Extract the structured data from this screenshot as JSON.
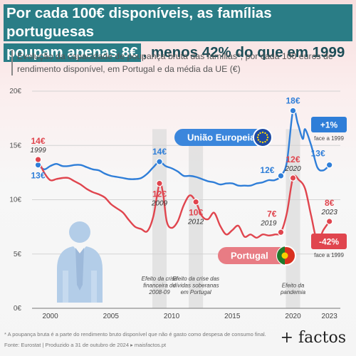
{
  "title": {
    "line1": "Por cada 100€ disponíveis, as famílias portuguesas",
    "line2_highlight": "poupam apenas 8€",
    "line2_rest": ", menos 42% do que em 1999"
  },
  "subtitle": "Evolução da capacidade de poupança bruta das famílias*, por cada 100 euros de rendimento disponível, em Portugal e da média da UE (€)",
  "chart_data": {
    "type": "line",
    "x_range": [
      1998.5,
      2023.9
    ],
    "ylim": [
      0,
      20
    ],
    "y_ticks": [
      0,
      5,
      10,
      15,
      20
    ],
    "y_tick_labels": [
      "0€",
      "5€",
      "10€",
      "15€",
      "20€"
    ],
    "x_ticks": [
      2000,
      2005,
      2010,
      2015,
      2020,
      2023
    ],
    "grid": true,
    "series": [
      {
        "name": "União Europeia",
        "color": "#2f7ed8",
        "points": [
          [
            1999,
            13.2
          ],
          [
            1999.5,
            12.8
          ],
          [
            2000,
            13.1
          ],
          [
            2000.5,
            13.3
          ],
          [
            2001,
            13.1
          ],
          [
            2001.5,
            13.1
          ],
          [
            2002,
            13.2
          ],
          [
            2002.5,
            13.2
          ],
          [
            2003,
            13.0
          ],
          [
            2003.5,
            12.8
          ],
          [
            2004,
            12.7
          ],
          [
            2004.5,
            12.4
          ],
          [
            2005,
            12.2
          ],
          [
            2005.5,
            12.1
          ],
          [
            2006,
            12.0
          ],
          [
            2006.5,
            11.9
          ],
          [
            2007,
            11.9
          ],
          [
            2007.5,
            12.0
          ],
          [
            2008,
            12.4
          ],
          [
            2008.5,
            13.0
          ],
          [
            2009,
            13.5
          ],
          [
            2009.5,
            13.1
          ],
          [
            2010,
            12.9
          ],
          [
            2010.5,
            12.6
          ],
          [
            2011,
            12.2
          ],
          [
            2011.5,
            12.2
          ],
          [
            2012,
            12.1
          ],
          [
            2012.5,
            11.9
          ],
          [
            2013,
            11.7
          ],
          [
            2013.5,
            11.6
          ],
          [
            2014,
            11.4
          ],
          [
            2014.5,
            11.5
          ],
          [
            2015,
            11.5
          ],
          [
            2015.5,
            11.3
          ],
          [
            2016,
            11.3
          ],
          [
            2016.5,
            11.3
          ],
          [
            2017,
            11.5
          ],
          [
            2017.5,
            11.6
          ],
          [
            2018,
            11.8
          ],
          [
            2018.5,
            11.8
          ],
          [
            2019,
            12.2
          ],
          [
            2019.5,
            13.5
          ],
          [
            2020,
            18.2
          ],
          [
            2020.4,
            17.0
          ],
          [
            2020.8,
            15.6
          ],
          [
            2021,
            16.5
          ],
          [
            2021.5,
            15.0
          ],
          [
            2022,
            13.0
          ],
          [
            2022.5,
            12.7
          ],
          [
            2023,
            13.2
          ]
        ]
      },
      {
        "name": "Portugal",
        "color": "#e0454e",
        "points": [
          [
            1999,
            13.7
          ],
          [
            1999.5,
            12.5
          ],
          [
            2000,
            11.8
          ],
          [
            2000.5,
            11.9
          ],
          [
            2001,
            12.0
          ],
          [
            2001.5,
            12.0
          ],
          [
            2002,
            11.7
          ],
          [
            2002.5,
            11.4
          ],
          [
            2003,
            11.0
          ],
          [
            2003.5,
            10.7
          ],
          [
            2004,
            10.5
          ],
          [
            2004.5,
            10.2
          ],
          [
            2005,
            9.6
          ],
          [
            2005.5,
            9.2
          ],
          [
            2006,
            8.8
          ],
          [
            2006.5,
            8.1
          ],
          [
            2007,
            7.5
          ],
          [
            2007.5,
            7.3
          ],
          [
            2008,
            7.1
          ],
          [
            2008.5,
            8.5
          ],
          [
            2009,
            11.5
          ],
          [
            2009.3,
            10.5
          ],
          [
            2009.6,
            8.0
          ],
          [
            2010,
            7.4
          ],
          [
            2010.5,
            8.0
          ],
          [
            2011,
            9.5
          ],
          [
            2011.5,
            10.4
          ],
          [
            2012,
            9.8
          ],
          [
            2012.5,
            8.5
          ],
          [
            2013,
            8.2
          ],
          [
            2013.5,
            8.8
          ],
          [
            2014,
            7.6
          ],
          [
            2014.5,
            6.8
          ],
          [
            2015,
            7.2
          ],
          [
            2015.5,
            7.6
          ],
          [
            2016,
            6.6
          ],
          [
            2016.5,
            6.8
          ],
          [
            2017,
            6.5
          ],
          [
            2017.5,
            6.8
          ],
          [
            2018,
            6.7
          ],
          [
            2018.5,
            6.8
          ],
          [
            2019,
            7.0
          ],
          [
            2019.5,
            8.8
          ],
          [
            2020,
            12.0
          ],
          [
            2020.5,
            11.8
          ],
          [
            2021,
            11.0
          ],
          [
            2021.5,
            8.5
          ],
          [
            2022,
            6.2
          ],
          [
            2022.5,
            7.2
          ],
          [
            2023,
            8.0
          ]
        ]
      }
    ],
    "bands": [
      {
        "x": 2009,
        "label": [
          "Efeito da crise",
          "financeira de",
          "2008-09"
        ]
      },
      {
        "x": 2012,
        "label": [
          "Efeito da crise das",
          "dívidas soberanas",
          "em Portugal"
        ]
      },
      {
        "x": 2020,
        "label": [
          "Efeito da",
          "pandemia"
        ]
      }
    ],
    "annotations": [
      {
        "series": 0,
        "x": 1999,
        "y": 13.2,
        "value": "13€",
        "year": "",
        "pos": "below"
      },
      {
        "series": 0,
        "x": 2009,
        "y": 13.5,
        "value": "14€",
        "year": "",
        "pos": "above"
      },
      {
        "series": 0,
        "x": 2019,
        "y": 12.2,
        "value": "12€",
        "year": "",
        "pos": "left"
      },
      {
        "series": 0,
        "x": 2020,
        "y": 18.2,
        "value": "18€",
        "year": "",
        "pos": "above"
      },
      {
        "series": 0,
        "x": 2023,
        "y": 13.2,
        "value": "13€",
        "year": "",
        "pos": "above-left"
      },
      {
        "series": 1,
        "x": 1999,
        "y": 13.7,
        "value": "14€",
        "year": "1999",
        "pos": "above"
      },
      {
        "series": 1,
        "x": 2009,
        "y": 11.5,
        "value": "12€",
        "year": "2009",
        "pos": "below"
      },
      {
        "series": 1,
        "x": 2012,
        "y": 9.8,
        "value": "10€",
        "year": "2012",
        "pos": "below"
      },
      {
        "series": 1,
        "x": 2019,
        "y": 7.0,
        "value": "7€",
        "year": "2019",
        "pos": "above-left"
      },
      {
        "series": 1,
        "x": 2020,
        "y": 12.0,
        "value": "12€",
        "year": "2020",
        "pos": "above"
      },
      {
        "series": 1,
        "x": 2023,
        "y": 8.0,
        "value": "8€",
        "year": "2023",
        "pos": "above"
      }
    ],
    "legend_labels": {
      "eu": "União Europeia",
      "pt": "Portugal"
    },
    "change_badges": [
      {
        "series": 0,
        "value": "+1%",
        "note": "face a 1999",
        "color": "#2f7ed8"
      },
      {
        "series": 1,
        "value": "-42%",
        "note": "face a 1999",
        "color": "#e0454e"
      }
    ]
  },
  "footer": {
    "note": "* A poupança bruta é a parte do rendimento bruto disponível que não é gasto como despesa de consumo final.",
    "source": "Fonte: Eurostat | Produzido a 31 de outubro de 2024 ▸ maisfactos.pt"
  },
  "brand": "+ factos"
}
